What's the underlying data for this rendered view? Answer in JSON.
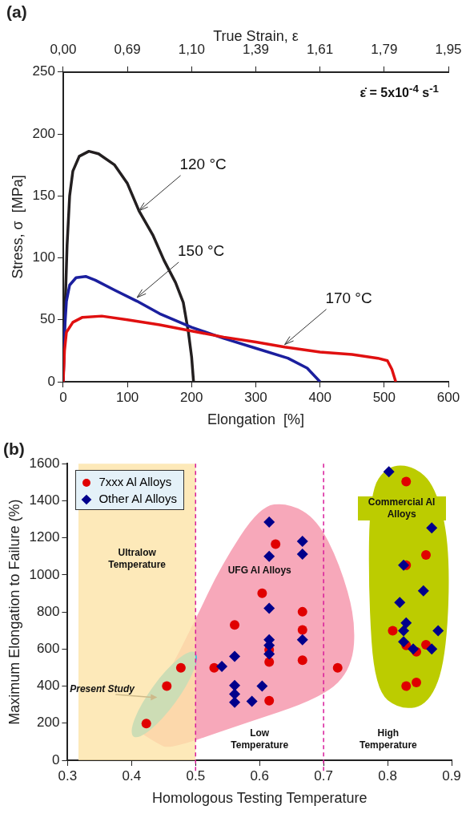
{
  "chart_data": [
    {
      "type": "line",
      "title": "(a)",
      "xlabel": "Elongation  [%]",
      "ylabel": "Stress, σ  [MPa]",
      "x2label": "True Strain, ε",
      "xlim": [
        0,
        600
      ],
      "xticks": [
        0,
        100,
        200,
        300,
        400,
        500,
        600
      ],
      "ylim": [
        0,
        250
      ],
      "yticks": [
        0,
        50,
        100,
        150,
        200,
        250
      ],
      "grid": false,
      "legend": false,
      "marker": "none",
      "line_style": "solid",
      "series": [
        {
          "color": "#231f20",
          "x": [
            0,
            3,
            6,
            10,
            15,
            25,
            40,
            55,
            80,
            100,
            118,
            140,
            157,
            175,
            187,
            195,
            200,
            203
          ],
          "values": [
            0,
            60,
            110,
            150,
            170,
            182,
            186,
            184,
            175,
            160,
            138,
            118,
            98,
            80,
            64,
            40,
            20,
            0
          ]
        },
        {
          "color": "#1b1f9e",
          "x": [
            0,
            2,
            5,
            10,
            20,
            35,
            50,
            80,
            115,
            150,
            200,
            250,
            300,
            350,
            380,
            400
          ],
          "values": [
            0,
            40,
            65,
            78,
            84,
            85,
            82,
            74,
            65,
            55,
            44,
            35,
            27,
            19,
            11,
            0
          ]
        },
        {
          "color": "#e01010",
          "x": [
            0,
            2,
            5,
            15,
            30,
            60,
            100,
            150,
            200,
            250,
            300,
            345,
            400,
            450,
            490,
            505,
            512,
            518
          ],
          "values": [
            0,
            25,
            40,
            48,
            52,
            53,
            50,
            46,
            41,
            36,
            32,
            28,
            24,
            22,
            19,
            17,
            10,
            0
          ]
        }
      ],
      "annotations": [
        "0,00",
        "0,69",
        "1,10",
        "1,39",
        "1,61",
        "1,79",
        "1,95",
        "ε̇ = 5x10$^{-4}$ s$^{-1}$",
        {
          "text": "120 °C",
          "x": 118,
          "y": 138
        },
        {
          "text": "150 °C",
          "x": 115,
          "y": 68
        },
        {
          "text": "170 °C",
          "x": 345,
          "y": 30
        }
      ]
    },
    {
      "type": "scatter",
      "title": "(b)",
      "xlabel": "Homologous Testing Temperature",
      "ylabel": "Maximum Elongation to Failure (%)",
      "xlim": [
        0.3,
        0.9
      ],
      "xticks": [
        0.3,
        0.4,
        0.5,
        0.6,
        0.7,
        0.8,
        0.9
      ],
      "ylim": [
        0,
        1600
      ],
      "yticks": [
        0,
        200,
        400,
        600,
        800,
        1000,
        1200,
        1400,
        1600
      ],
      "grid": false,
      "legend": "top left",
      "series": [
        {
          "name": "7xxx Al Alloys",
          "color": "#e00000",
          "marker": "circle",
          "x": [
            0.423,
            0.455,
            0.477,
            0.529,
            0.561,
            0.604,
            0.625,
            0.615,
            0.615,
            0.615,
            0.667,
            0.667,
            0.667,
            0.722,
            0.808,
            0.829,
            0.829,
            0.829,
            0.845,
            0.86,
            0.86,
            0.829,
            0.845
          ],
          "values": [
            198,
            400,
            499,
            499,
            730,
            901,
            1166,
            596,
            530,
            321,
            801,
            703,
            540,
            499,
            699,
            1504,
            1052,
            620,
            585,
            1108,
            623,
            400,
            420
          ]
        },
        {
          "name": "Other Al Alloys",
          "color": "#00008b",
          "marker": "diamond",
          "x": [
            0.541,
            0.561,
            0.561,
            0.561,
            0.561,
            0.588,
            0.604,
            0.615,
            0.615,
            0.615,
            0.615,
            0.615,
            0.615,
            0.667,
            0.667,
            0.667,
            0.802,
            0.869,
            0.825,
            0.856,
            0.819,
            0.829,
            0.825,
            0.825,
            0.84,
            0.869,
            0.879
          ],
          "values": [
            506,
            560,
            403,
            357,
            313,
            318,
            400,
            1285,
            1100,
            820,
            650,
            620,
            573,
            1181,
            1112,
            650,
            1556,
            1254,
            1052,
            914,
            851,
            741,
            699,
            639,
            600,
            600,
            699
          ]
        }
      ],
      "bands": [
        {
          "axis": "x",
          "from": 0.317,
          "to": 0.5,
          "label": "Ultralow Temperature",
          "color": "#fde3a7"
        }
      ],
      "ref_lines": [
        {
          "axis": "x",
          "value": 0.5,
          "color": "#d81b9a",
          "line_style": "dashed"
        },
        {
          "axis": "x",
          "value": 0.7,
          "color": "#d81b9a",
          "line_style": "dashed"
        }
      ],
      "annotations": [
        "UFG Al Alloys",
        "Commercial Al Alloys",
        "Present Study",
        "Low Temperature",
        "High Temperature"
      ]
    }
  ]
}
